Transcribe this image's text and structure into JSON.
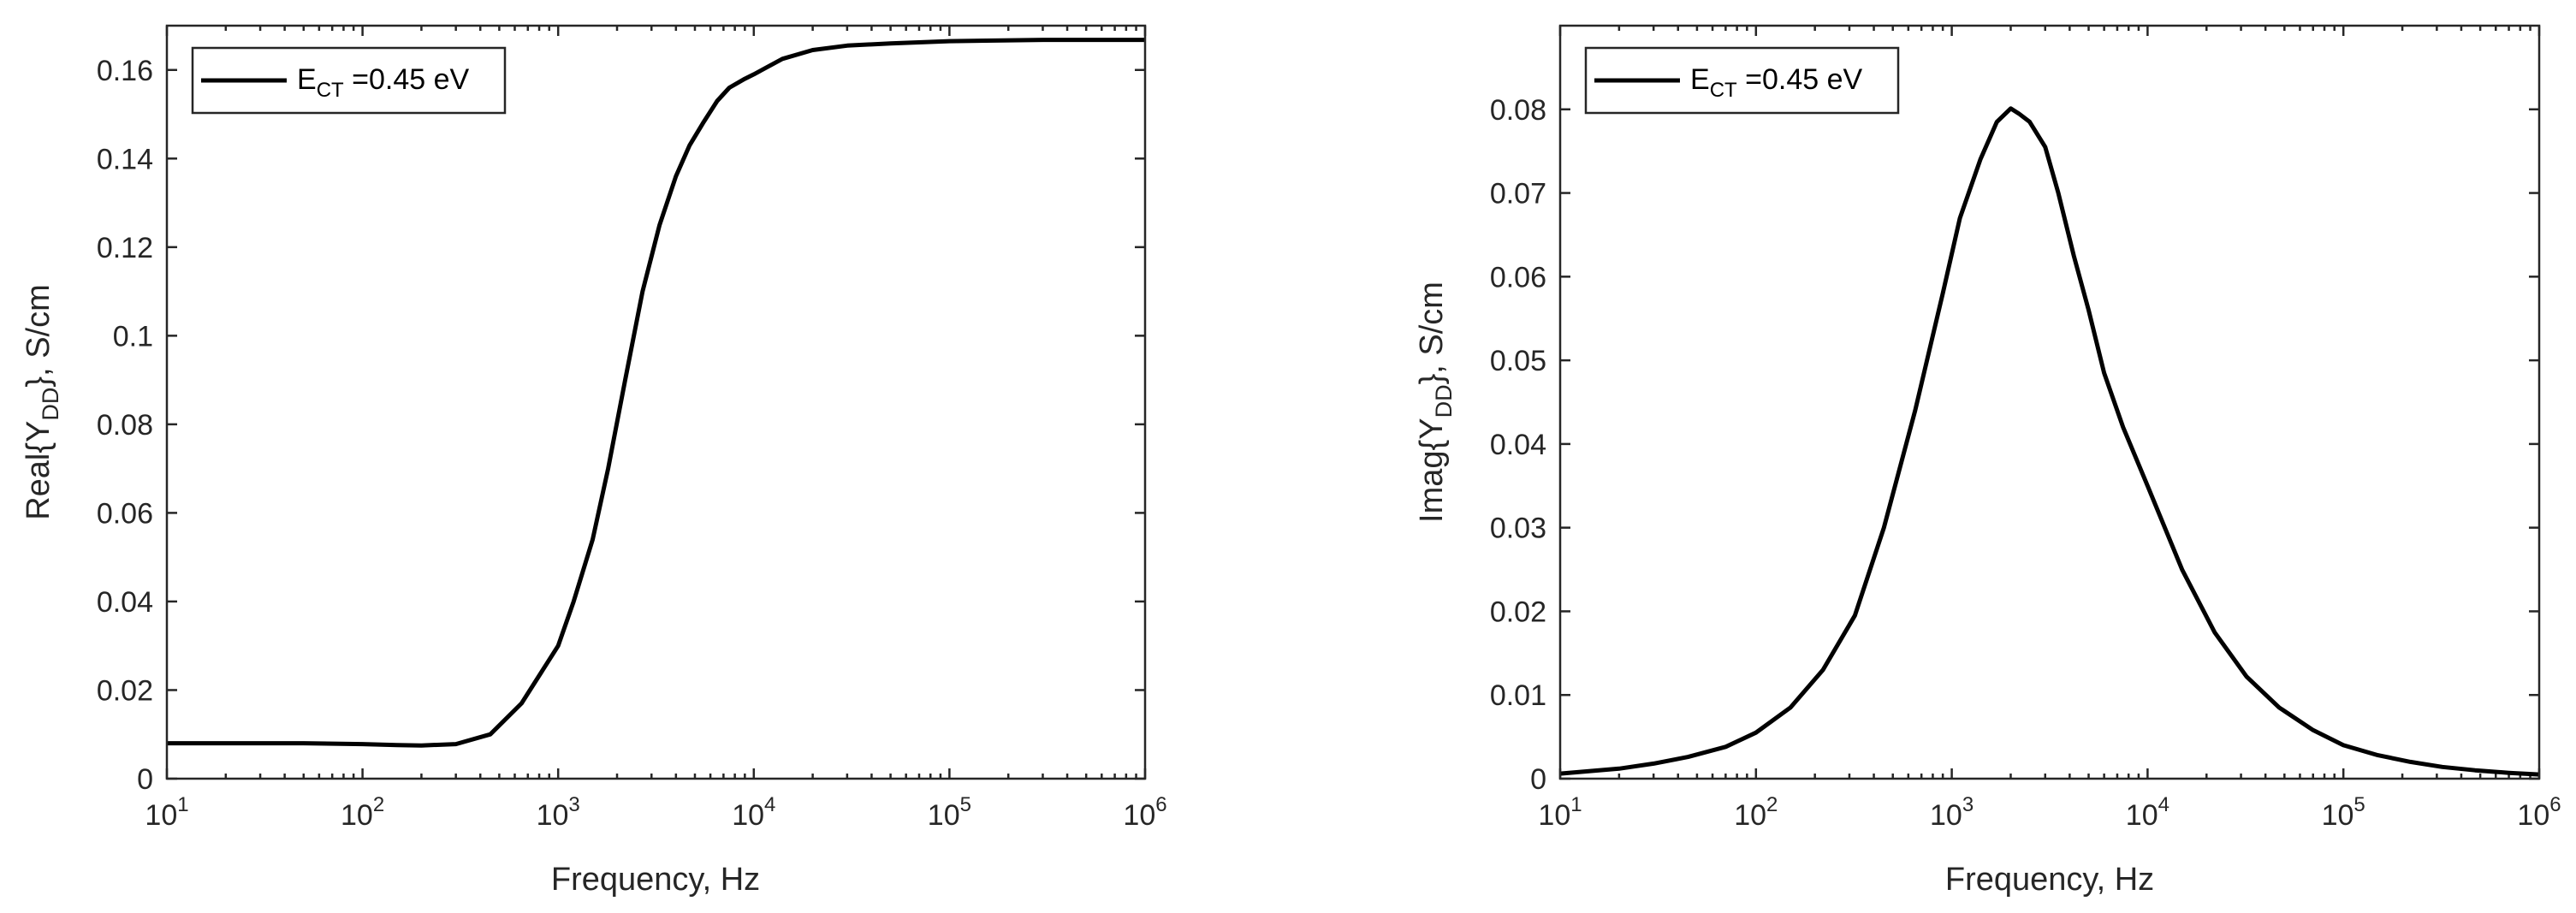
{
  "chart_data": [
    {
      "type": "line",
      "xscale": "log",
      "xlim": [
        10,
        1000000
      ],
      "ylim": [
        0,
        0.17
      ],
      "x_ticks": [
        10,
        100,
        1000,
        10000,
        100000,
        1000000
      ],
      "x_tick_labels": [
        {
          "base": "10",
          "exp": "1"
        },
        {
          "base": "10",
          "exp": "2"
        },
        {
          "base": "10",
          "exp": "3"
        },
        {
          "base": "10",
          "exp": "4"
        },
        {
          "base": "10",
          "exp": "5"
        },
        {
          "base": "10",
          "exp": "6"
        }
      ],
      "y_ticks": [
        0,
        0.02,
        0.04,
        0.06,
        0.08,
        0.1,
        0.12,
        0.14,
        0.16
      ],
      "y_tick_labels": [
        "0",
        "0.02",
        "0.04",
        "0.06",
        "0.08",
        "0.1",
        "0.12",
        "0.14",
        "0.16"
      ],
      "xlabel": "Frequency, Hz",
      "ylabel": {
        "pre": "Real{Y",
        "sub": "DD",
        "post": "}, S/cm"
      },
      "legend_position": "top-left",
      "series": [
        {
          "name": {
            "pre": "E",
            "sub": "CT",
            "post": " =0.45 eV"
          },
          "color": "#000000",
          "x": [
            10,
            20,
            50,
            100,
            150,
            200,
            300,
            450,
            650,
            1000,
            1200,
            1500,
            1800,
            2200,
            2700,
            3300,
            4000,
            4700,
            5500,
            6500,
            7500,
            9000,
            10000,
            14000,
            20000,
            30000,
            50000,
            100000,
            300000,
            1000000
          ],
          "y": [
            0.008,
            0.008,
            0.008,
            0.0078,
            0.0076,
            0.0075,
            0.0078,
            0.01,
            0.017,
            0.03,
            0.04,
            0.054,
            0.07,
            0.09,
            0.11,
            0.125,
            0.136,
            0.143,
            0.148,
            0.153,
            0.156,
            0.158,
            0.159,
            0.1625,
            0.1645,
            0.1655,
            0.166,
            0.1665,
            0.1668,
            0.1668
          ]
        }
      ]
    },
    {
      "type": "line",
      "xscale": "log",
      "xlim": [
        10,
        1000000
      ],
      "ylim": [
        0,
        0.09
      ],
      "x_ticks": [
        10,
        100,
        1000,
        10000,
        100000,
        1000000
      ],
      "x_tick_labels": [
        {
          "base": "10",
          "exp": "1"
        },
        {
          "base": "10",
          "exp": "2"
        },
        {
          "base": "10",
          "exp": "3"
        },
        {
          "base": "10",
          "exp": "4"
        },
        {
          "base": "10",
          "exp": "5"
        },
        {
          "base": "10",
          "exp": "6"
        }
      ],
      "y_ticks": [
        0,
        0.01,
        0.02,
        0.03,
        0.04,
        0.05,
        0.06,
        0.07,
        0.08
      ],
      "y_tick_labels": [
        "0",
        "0.01",
        "0.02",
        "0.03",
        "0.04",
        "0.05",
        "0.06",
        "0.07",
        "0.08"
      ],
      "xlabel": "Frequency, Hz",
      "ylabel": {
        "pre": "Imag{Y",
        "sub": "DD",
        "post": "}, S/cm"
      },
      "legend_position": "top-left",
      "series": [
        {
          "name": {
            "pre": "E",
            "sub": "CT",
            "post": " =0.45 eV"
          },
          "color": "#000000",
          "x": [
            10,
            20,
            30,
            45,
            70,
            100,
            150,
            220,
            320,
            450,
            650,
            900,
            1100,
            1400,
            1700,
            2000,
            2200,
            2500,
            3000,
            3500,
            4200,
            5000,
            6000,
            7500,
            10000,
            15000,
            22000,
            32000,
            47000,
            70000,
            100000,
            150000,
            220000,
            320000,
            470000,
            700000,
            1000000
          ],
          "y": [
            0.0006,
            0.0012,
            0.0018,
            0.0026,
            0.0038,
            0.0055,
            0.0085,
            0.013,
            0.0195,
            0.03,
            0.044,
            0.058,
            0.067,
            0.074,
            0.0785,
            0.0801,
            0.0795,
            0.0785,
            0.0755,
            0.07,
            0.0625,
            0.056,
            0.0485,
            0.042,
            0.035,
            0.025,
            0.0175,
            0.0122,
            0.0085,
            0.0058,
            0.004,
            0.0028,
            0.002,
            0.0014,
            0.001,
            0.0007,
            0.0005
          ]
        }
      ]
    }
  ]
}
